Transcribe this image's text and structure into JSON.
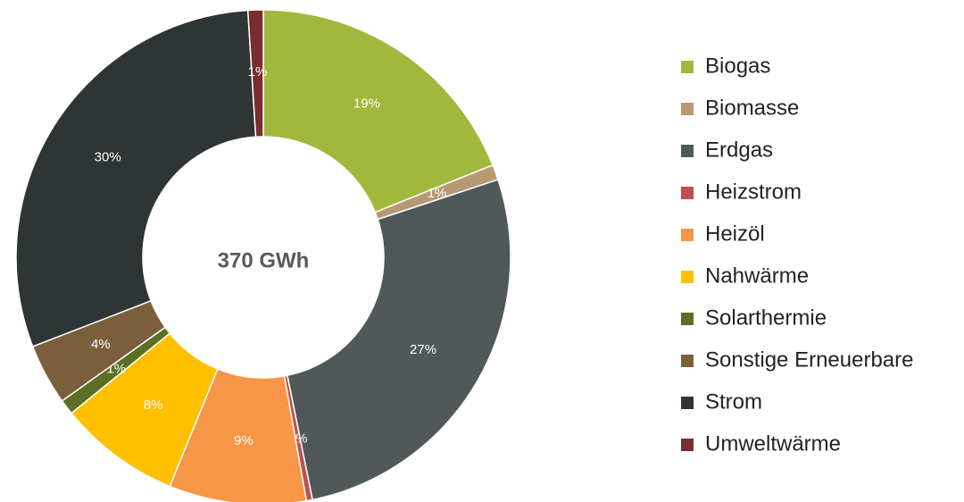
{
  "chart_data": {
    "type": "donut",
    "center_label": "370 GWh",
    "categories": [
      "Biogas",
      "Biomasse",
      "Erdgas",
      "Heizstrom",
      "Heizöl",
      "Nahwärme",
      "Solarthermie",
      "Sonstige Erneuerbare",
      "Strom",
      "Umweltwärme"
    ],
    "values": [
      19,
      1,
      27,
      0.4,
      9,
      8,
      1,
      4,
      30,
      1
    ],
    "value_labels": [
      "19%",
      "1%",
      "27%",
      "0%",
      "9%",
      "8%",
      "1%",
      "4%",
      "30%",
      "1%"
    ],
    "colors": [
      "#a2b83c",
      "#b59a72",
      "#505859",
      "#c0504d",
      "#f79646",
      "#ffc000",
      "#5b6e23",
      "#7a5f3c",
      "#2f3535",
      "#7b2c2c"
    ],
    "legend": "right"
  }
}
